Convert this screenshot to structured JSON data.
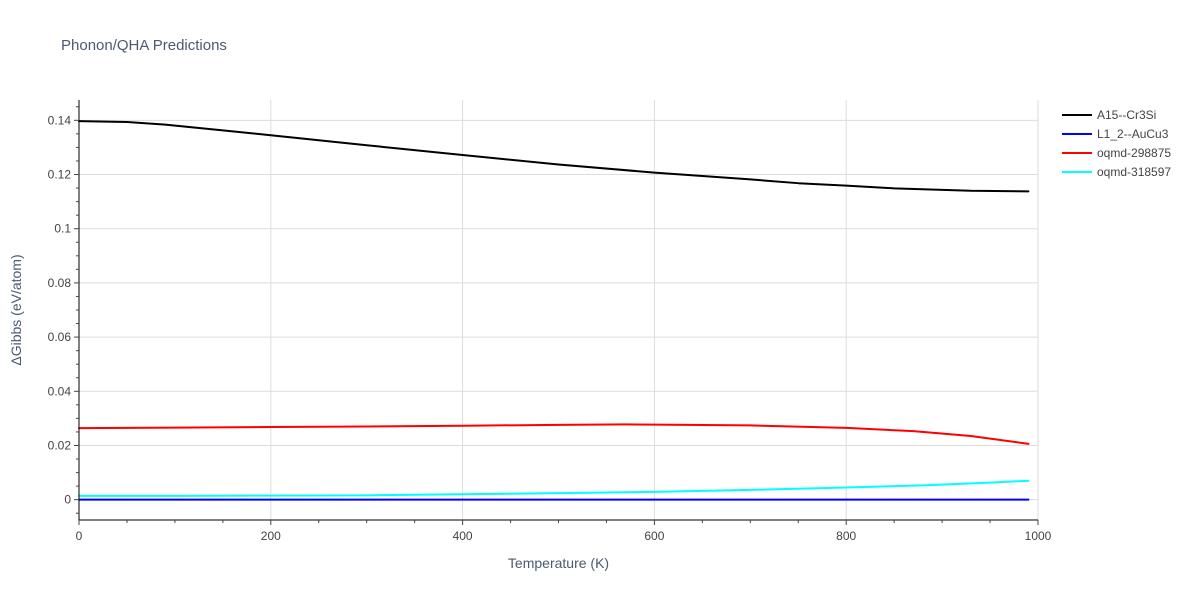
{
  "chart_data": {
    "type": "line",
    "title": "Phonon/QHA Predictions",
    "xlabel": "Temperature (K)",
    "ylabel": "ΔGibbs (eV/atom)",
    "xlim": [
      0,
      1000
    ],
    "ylim": [
      -0.0075,
      0.1475
    ],
    "x_ticks": [
      0,
      200,
      400,
      600,
      800,
      1000
    ],
    "x_tick_labels": [
      "0",
      "200",
      "400",
      "600",
      "800",
      "1000"
    ],
    "y_ticks": [
      0,
      0.02,
      0.04,
      0.06,
      0.08,
      0.1,
      0.12,
      0.14
    ],
    "y_tick_labels": [
      "0",
      "0.02",
      "0.04",
      "0.06",
      "0.08",
      "0.1",
      "0.12",
      "0.14"
    ],
    "grid": true,
    "legend_position": "right",
    "series": [
      {
        "name": "A15--Cr3Si",
        "color": "#000000",
        "x": [
          0,
          50,
          90,
          150,
          200,
          300,
          400,
          500,
          600,
          700,
          750,
          800,
          850,
          930,
          990
        ],
        "y": [
          0.1397,
          0.1394,
          0.1384,
          0.1363,
          0.1345,
          0.1308,
          0.1272,
          0.1237,
          0.1207,
          0.1182,
          0.1168,
          0.1159,
          0.1149,
          0.114,
          0.1138
        ]
      },
      {
        "name": "L1_2--AuCu3",
        "color": "#0000ff",
        "x": [
          0,
          200,
          400,
          600,
          800,
          990
        ],
        "y": [
          0.0,
          0.0,
          0.0,
          0.0,
          0.0,
          0.0
        ]
      },
      {
        "name": "oqmd-298875",
        "color": "#ff0000",
        "x": [
          0,
          100,
          200,
          300,
          400,
          500,
          570,
          600,
          700,
          800,
          870,
          930,
          990
        ],
        "y": [
          0.0264,
          0.0266,
          0.0268,
          0.027,
          0.0273,
          0.0276,
          0.0278,
          0.0277,
          0.0274,
          0.0265,
          0.0253,
          0.0235,
          0.0206
        ]
      },
      {
        "name": "oqmd-318597",
        "color": "#00ffff",
        "x": [
          0,
          100,
          200,
          300,
          400,
          500,
          600,
          700,
          800,
          880,
          950,
          990
        ],
        "y": [
          0.0014,
          0.0014,
          0.0015,
          0.0016,
          0.002,
          0.0024,
          0.0029,
          0.0036,
          0.0045,
          0.0053,
          0.0063,
          0.007
        ]
      }
    ]
  }
}
